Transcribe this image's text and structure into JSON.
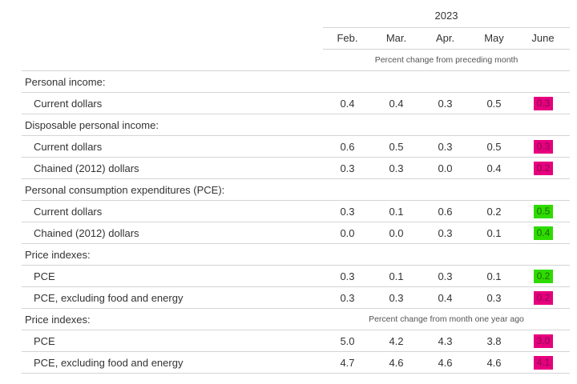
{
  "header": {
    "year": "2023",
    "months": [
      "Feb.",
      "Mar.",
      "Apr.",
      "May",
      "June"
    ],
    "units_monthly": "Percent change from preceding month",
    "units_yearly": "Percent change from month one year ago"
  },
  "highlight_colors": {
    "magenta": "#e6007e",
    "green": "#2edb00"
  },
  "rows": [
    {
      "kind": "category",
      "label": "Personal income:"
    },
    {
      "kind": "data",
      "label": "Current dollars",
      "values": [
        "0.4",
        "0.4",
        "0.3",
        "0.5"
      ],
      "june": "0.3",
      "june_color": "magenta"
    },
    {
      "kind": "category",
      "label": "Disposable personal income:"
    },
    {
      "kind": "data",
      "label": "Current dollars",
      "values": [
        "0.6",
        "0.5",
        "0.3",
        "0.5"
      ],
      "june": "0.3",
      "june_color": "magenta"
    },
    {
      "kind": "data",
      "label": "Chained (2012) dollars",
      "values": [
        "0.3",
        "0.3",
        "0.0",
        "0.4"
      ],
      "june": "0.2",
      "june_color": "magenta"
    },
    {
      "kind": "category",
      "label": "Personal consumption expenditures (PCE):"
    },
    {
      "kind": "data",
      "label": "Current dollars",
      "values": [
        "0.3",
        "0.1",
        "0.6",
        "0.2"
      ],
      "june": "0.5",
      "june_color": "green"
    },
    {
      "kind": "data",
      "label": "Chained (2012) dollars",
      "values": [
        "0.0",
        "0.0",
        "0.3",
        "0.1"
      ],
      "june": "0.4",
      "june_color": "green"
    },
    {
      "kind": "category",
      "label": "Price indexes:"
    },
    {
      "kind": "data",
      "label": "PCE",
      "values": [
        "0.3",
        "0.1",
        "0.3",
        "0.1"
      ],
      "june": "0.2",
      "june_color": "green"
    },
    {
      "kind": "data",
      "label": "PCE, excluding food and energy",
      "values": [
        "0.3",
        "0.3",
        "0.4",
        "0.3"
      ],
      "june": "0.2",
      "june_color": "magenta"
    },
    {
      "kind": "category",
      "label": "Price indexes:",
      "units": true
    },
    {
      "kind": "data",
      "label": "PCE",
      "values": [
        "5.0",
        "4.2",
        "4.3",
        "3.8"
      ],
      "june": "3.0",
      "june_color": "magenta"
    },
    {
      "kind": "data",
      "label": "PCE, excluding food and energy",
      "values": [
        "4.7",
        "4.6",
        "4.6",
        "4.6"
      ],
      "june": "4.1",
      "june_color": "magenta"
    }
  ]
}
